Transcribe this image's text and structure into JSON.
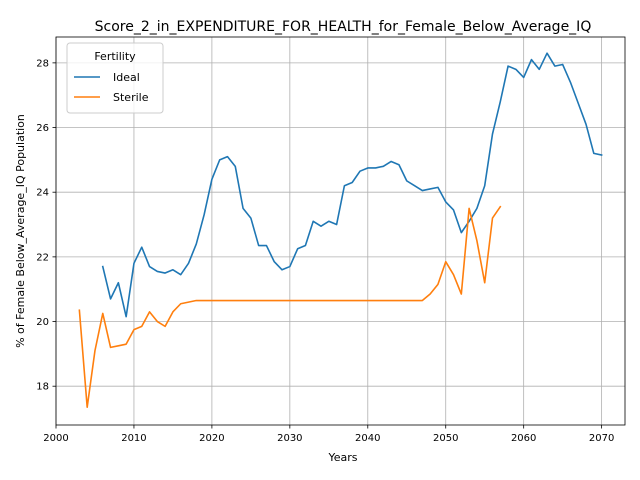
{
  "chart_data": {
    "type": "line",
    "title": "Score_2_in_EXPENDITURE_FOR_HEALTH_for_Female_Below_Average_IQ",
    "xlabel": "Years",
    "ylabel": "% of Female Below_Average_IQ Population",
    "xlim": [
      2000,
      2073
    ],
    "ylim": [
      16.8,
      28.8
    ],
    "xticks": [
      2000,
      2010,
      2020,
      2030,
      2040,
      2050,
      2060,
      2070
    ],
    "yticks": [
      18,
      20,
      22,
      24,
      26,
      28
    ],
    "grid": true,
    "legend": {
      "title": "Fertility",
      "placement": "top-left"
    },
    "series": [
      {
        "name": "Ideal",
        "color": "#1f77b4",
        "x": [
          2006,
          2007,
          2008,
          2009,
          2010,
          2011,
          2012,
          2013,
          2014,
          2015,
          2016,
          2017,
          2018,
          2019,
          2020,
          2021,
          2022,
          2023,
          2024,
          2025,
          2026,
          2027,
          2028,
          2029,
          2030,
          2031,
          2032,
          2033,
          2034,
          2035,
          2036,
          2037,
          2038,
          2039,
          2040,
          2041,
          2042,
          2043,
          2044,
          2045,
          2046,
          2047,
          2048,
          2049,
          2050,
          2051,
          2052,
          2053,
          2054,
          2055,
          2056,
          2057,
          2058,
          2059,
          2060,
          2061,
          2062,
          2063,
          2064,
          2065,
          2066,
          2067,
          2068,
          2069,
          2070
        ],
        "y": [
          21.7,
          20.7,
          21.2,
          20.15,
          21.8,
          22.3,
          21.7,
          21.55,
          21.5,
          21.6,
          21.45,
          21.8,
          22.4,
          23.3,
          24.4,
          25.0,
          25.1,
          24.8,
          23.5,
          23.2,
          22.35,
          22.35,
          21.85,
          21.6,
          21.7,
          22.25,
          22.35,
          23.1,
          22.95,
          23.1,
          23.0,
          24.2,
          24.3,
          24.65,
          24.75,
          24.75,
          24.8,
          24.95,
          24.85,
          24.35,
          24.2,
          24.05,
          24.1,
          24.15,
          23.7,
          23.45,
          22.75,
          23.1,
          23.5,
          24.2,
          25.8,
          26.8,
          27.9,
          27.8,
          27.55,
          28.1,
          27.8,
          28.3,
          27.9,
          27.95,
          27.4,
          26.75,
          26.1,
          25.2,
          25.15
        ]
      },
      {
        "name": "Sterile",
        "color": "#ff7f0e",
        "x": [
          2003,
          2004,
          2005,
          2006,
          2007,
          2008,
          2009,
          2010,
          2011,
          2012,
          2013,
          2014,
          2015,
          2016,
          2017,
          2018,
          2019,
          2020,
          2021,
          2022,
          2023,
          2024,
          2025,
          2026,
          2027,
          2028,
          2029,
          2030,
          2031,
          2032,
          2033,
          2034,
          2035,
          2036,
          2037,
          2038,
          2039,
          2040,
          2041,
          2042,
          2043,
          2044,
          2045,
          2046,
          2047,
          2048,
          2049,
          2050,
          2051,
          2052,
          2053,
          2054,
          2055,
          2056,
          2057
        ],
        "y": [
          20.35,
          17.35,
          19.1,
          20.25,
          19.2,
          19.25,
          19.3,
          19.75,
          19.85,
          20.3,
          20.0,
          19.85,
          20.3,
          20.55,
          20.6,
          20.65,
          20.65,
          20.65,
          20.65,
          20.65,
          20.65,
          20.65,
          20.65,
          20.65,
          20.65,
          20.65,
          20.65,
          20.65,
          20.65,
          20.65,
          20.65,
          20.65,
          20.65,
          20.65,
          20.65,
          20.65,
          20.65,
          20.65,
          20.65,
          20.65,
          20.65,
          20.65,
          20.65,
          20.65,
          20.65,
          20.85,
          21.15,
          21.85,
          21.45,
          20.85,
          23.5,
          22.5,
          21.2,
          23.2,
          23.55
        ]
      }
    ]
  }
}
